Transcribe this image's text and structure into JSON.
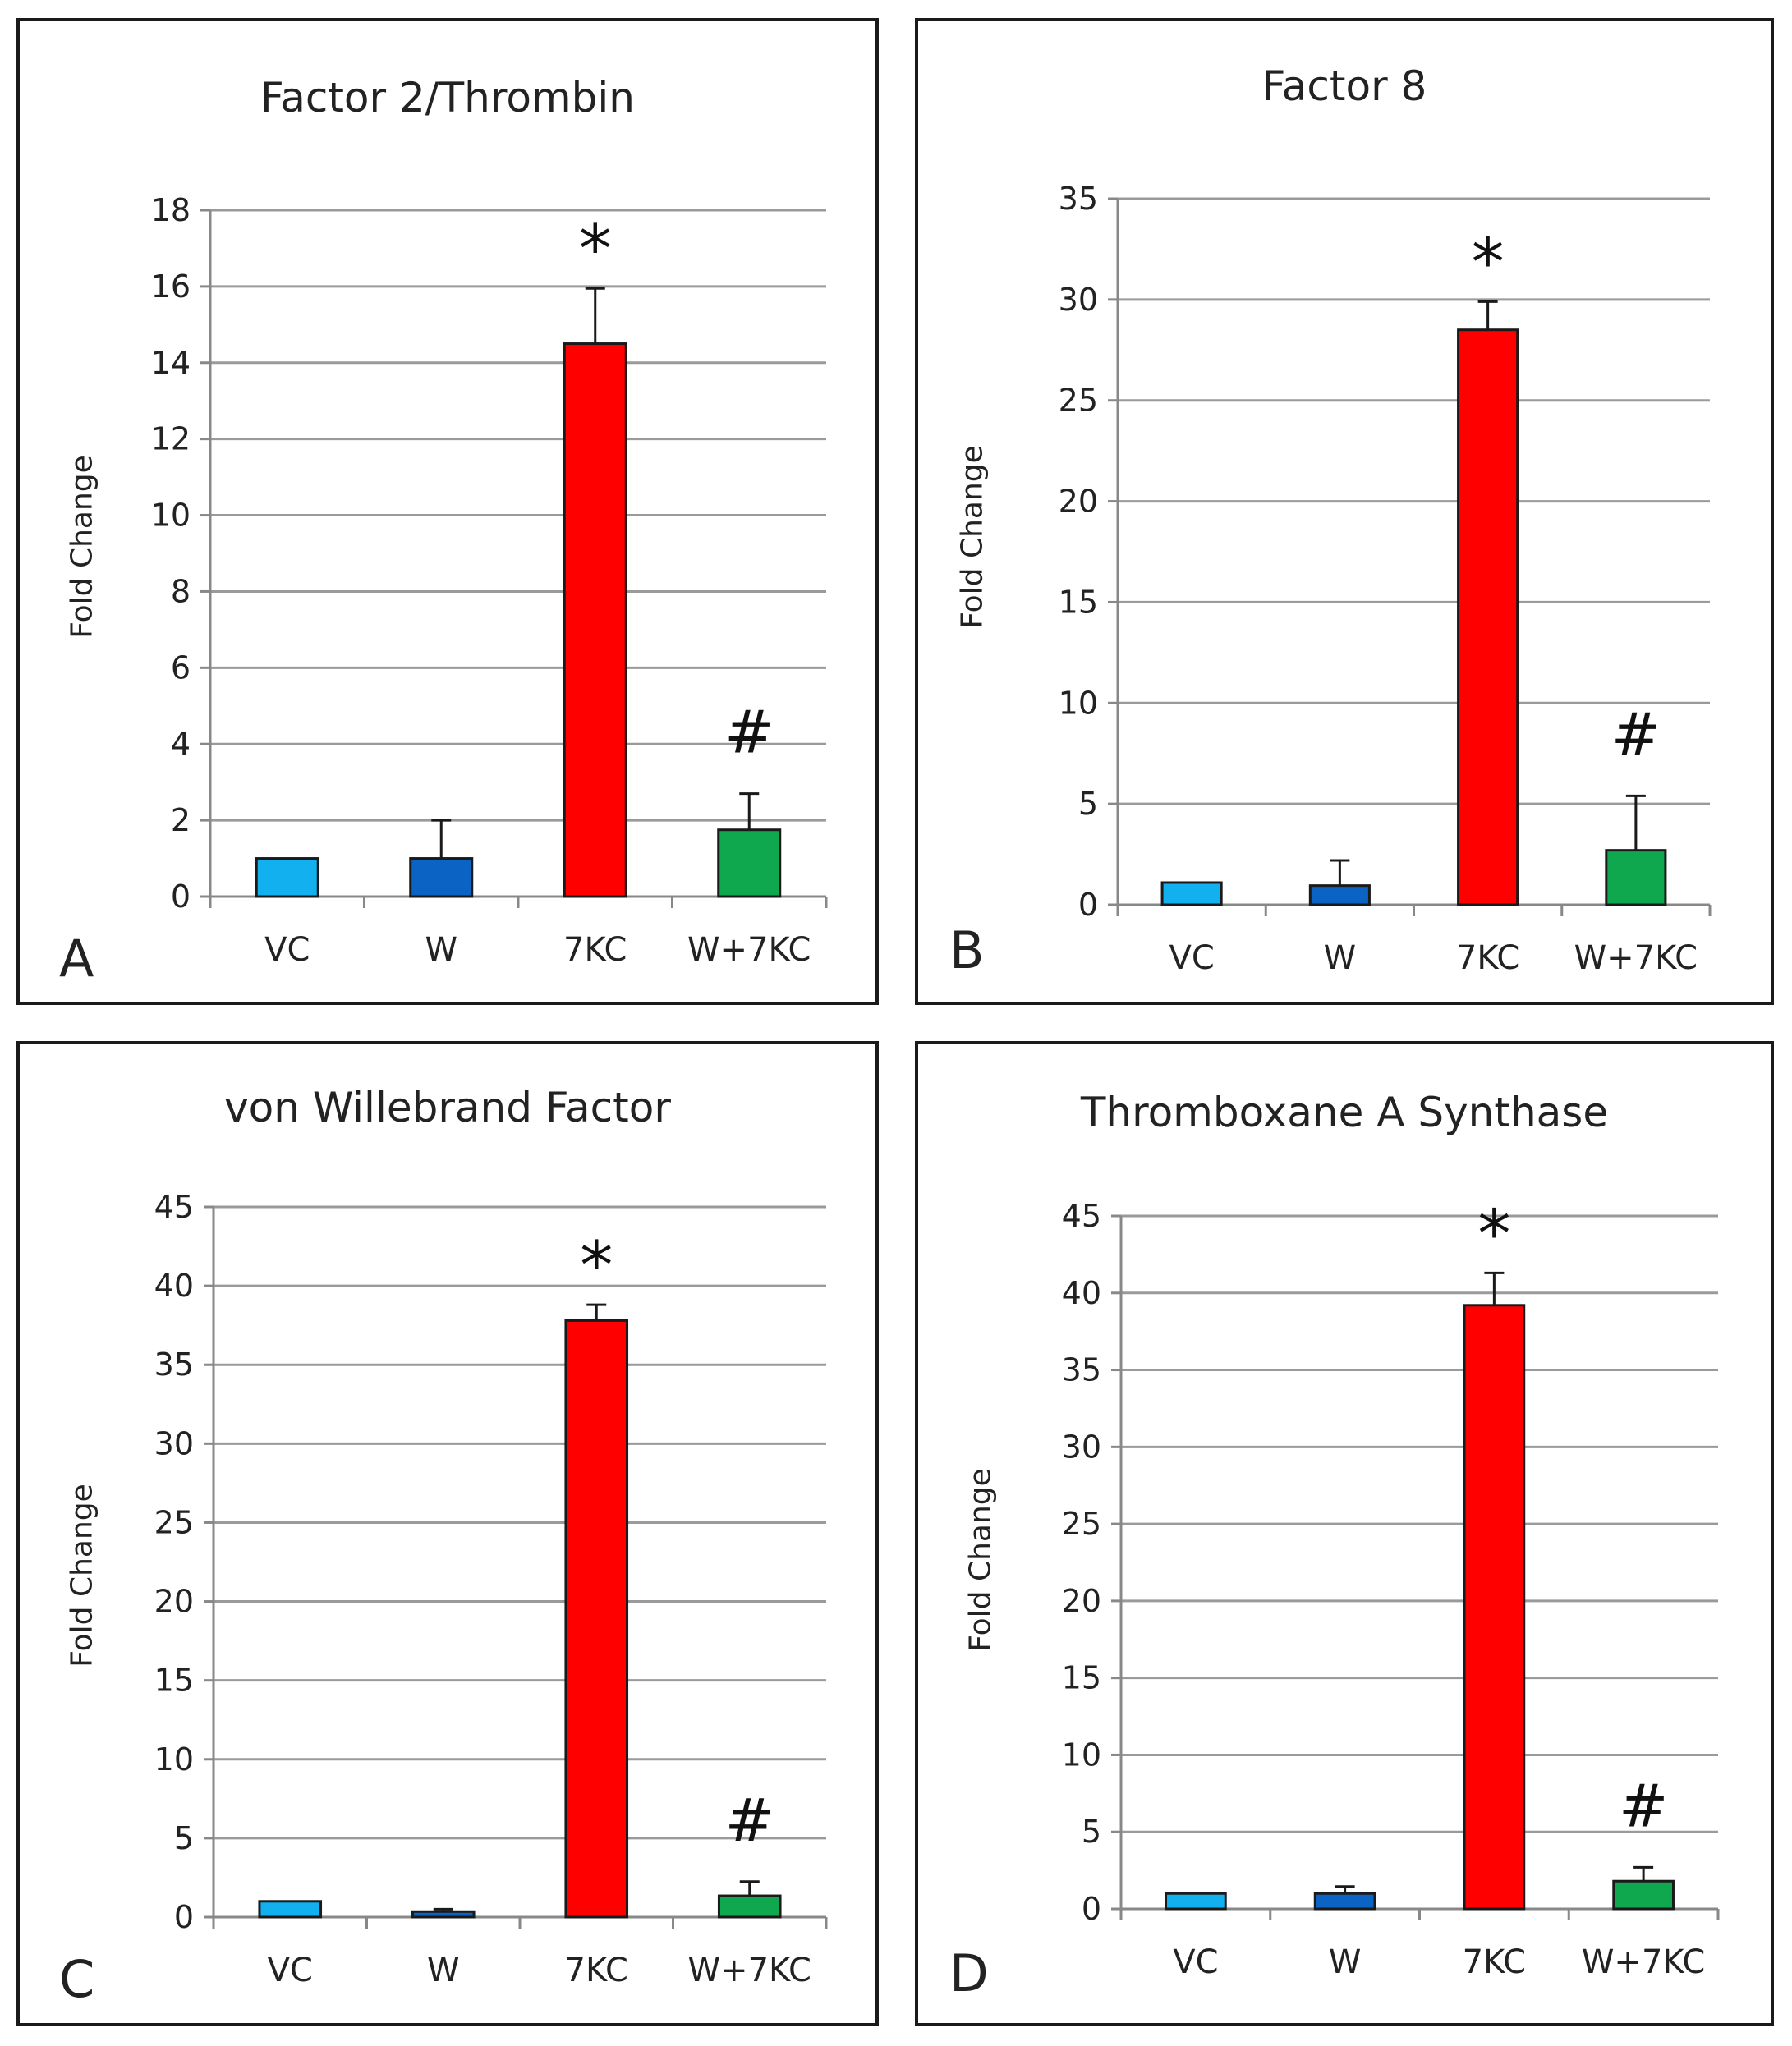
{
  "colors": {
    "VC": "#12b0ee",
    "W": "#0b63c4",
    "7KC": "#ff0000",
    "W+7KC": "#10a84f",
    "grid": "#9a9a9a",
    "axis": "#888888"
  },
  "chart_data": [
    {
      "type": "bar",
      "panel_label": "A",
      "title": "Factor 2/Thrombin",
      "ylabel": "Fold Change",
      "categories": [
        "VC",
        "W",
        "7KC",
        "W+7KC"
      ],
      "values": [
        1.0,
        1.0,
        14.5,
        1.75
      ],
      "errors": [
        0,
        1.0,
        1.45,
        0.95
      ],
      "ylim": [
        0,
        18
      ],
      "ytick_step": 2,
      "yticks": [
        "0",
        "2",
        "4",
        "6",
        "8",
        "10",
        "12",
        "14",
        "16",
        "18"
      ],
      "annotations": [
        {
          "category": "7KC",
          "text": "*"
        },
        {
          "category": "W+7KC",
          "text": "#"
        }
      ]
    },
    {
      "type": "bar",
      "panel_label": "B",
      "title": "Factor 8",
      "ylabel": "Fold Change",
      "categories": [
        "VC",
        "W",
        "7KC",
        "W+7KC"
      ],
      "values": [
        1.1,
        0.95,
        28.5,
        2.7
      ],
      "errors": [
        0,
        1.25,
        1.4,
        2.7
      ],
      "ylim": [
        0,
        35
      ],
      "ytick_step": 5,
      "yticks": [
        "0",
        "5",
        "10",
        "15",
        "20",
        "25",
        "30",
        "35"
      ],
      "annotations": [
        {
          "category": "7KC",
          "text": "*"
        },
        {
          "category": "W+7KC",
          "text": "#"
        }
      ]
    },
    {
      "type": "bar",
      "panel_label": "C",
      "title": "von Willebrand Factor",
      "ylabel": "Fold Change",
      "categories": [
        "VC",
        "W",
        "7KC",
        "W+7KC"
      ],
      "values": [
        1.0,
        0.35,
        37.8,
        1.35
      ],
      "errors": [
        0,
        0.15,
        1.0,
        0.9
      ],
      "ylim": [
        0,
        45
      ],
      "ytick_step": 5,
      "yticks": [
        "0",
        "5",
        "10",
        "15",
        "20",
        "25",
        "30",
        "35",
        "40",
        "45"
      ],
      "annotations": [
        {
          "category": "7KC",
          "text": "*"
        },
        {
          "category": "W+7KC",
          "text": "#"
        }
      ]
    },
    {
      "type": "bar",
      "panel_label": "D",
      "title": "Thromboxane A Synthase",
      "ylabel": "Fold Change",
      "categories": [
        "VC",
        "W",
        "7KC",
        "W+7KC"
      ],
      "values": [
        1.0,
        1.0,
        39.2,
        1.8
      ],
      "errors": [
        0,
        0.45,
        2.1,
        0.9
      ],
      "ylim": [
        0,
        45
      ],
      "ytick_step": 5,
      "yticks": [
        "0",
        "5",
        "10",
        "15",
        "20",
        "25",
        "30",
        "35",
        "40",
        "45"
      ],
      "annotations": [
        {
          "category": "7KC",
          "text": "*"
        },
        {
          "category": "W+7KC",
          "text": "#"
        }
      ]
    }
  ]
}
